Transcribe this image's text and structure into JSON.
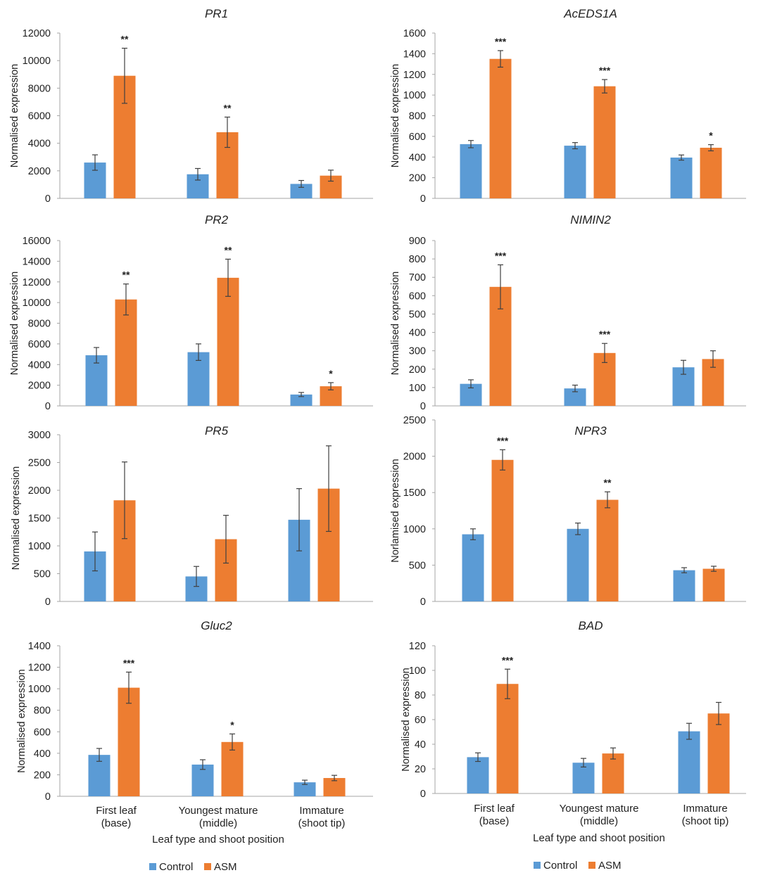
{
  "colors": {
    "control": "#5b9bd5",
    "asm": "#ed7d31",
    "axis": "#a6a6a6",
    "error": "#404040",
    "text": "#222222"
  },
  "xaxis": {
    "categories": [
      {
        "line1": "First leaf",
        "line2": "(base)"
      },
      {
        "line1": "Youngest mature",
        "line2": "(middle)"
      },
      {
        "line1": "Immature",
        "line2": "(shoot tip)"
      }
    ],
    "title": "Leaf type and shoot position"
  },
  "legend": {
    "control": "Control",
    "asm": "ASM"
  },
  "chart_data": [
    {
      "type": "bar",
      "title": "PR1",
      "ylabel": "Normalised expression",
      "ylim": [
        0,
        12000
      ],
      "yticks": [
        0,
        2000,
        4000,
        6000,
        8000,
        10000,
        12000
      ],
      "categories": [
        "First leaf (base)",
        "Youngest mature (middle)",
        "Immature (shoot tip)"
      ],
      "series": [
        {
          "name": "Control",
          "values": [
            2600,
            1750,
            1050
          ],
          "errors": [
            560,
            420,
            250
          ]
        },
        {
          "name": "ASM",
          "values": [
            8900,
            4800,
            1650
          ],
          "errors": [
            2000,
            1100,
            400
          ]
        }
      ],
      "significance": [
        "**",
        "**",
        ""
      ]
    },
    {
      "type": "bar",
      "title": "AcEDS1A",
      "ylabel": "Normalised expression",
      "ylim": [
        0,
        1600
      ],
      "yticks": [
        0,
        200,
        400,
        600,
        800,
        1000,
        1200,
        1400,
        1600
      ],
      "categories": [
        "First leaf (base)",
        "Youngest mature (middle)",
        "Immature (shoot tip)"
      ],
      "series": [
        {
          "name": "Control",
          "values": [
            525,
            510,
            395
          ],
          "errors": [
            35,
            30,
            25
          ]
        },
        {
          "name": "ASM",
          "values": [
            1350,
            1085,
            490
          ],
          "errors": [
            80,
            65,
            30
          ]
        }
      ],
      "significance": [
        "***",
        "***",
        "*"
      ]
    },
    {
      "type": "bar",
      "title": "PR2",
      "ylabel": "Normalised expression",
      "ylim": [
        0,
        16000
      ],
      "yticks": [
        0,
        2000,
        4000,
        6000,
        8000,
        10000,
        12000,
        14000,
        16000
      ],
      "categories": [
        "First leaf (base)",
        "Youngest mature (middle)",
        "Immature (shoot tip)"
      ],
      "series": [
        {
          "name": "Control",
          "values": [
            4900,
            5200,
            1100
          ],
          "errors": [
            750,
            800,
            200
          ]
        },
        {
          "name": "ASM",
          "values": [
            10300,
            12400,
            1900
          ],
          "errors": [
            1500,
            1800,
            350
          ]
        }
      ],
      "significance": [
        "**",
        "**",
        "*"
      ]
    },
    {
      "type": "bar",
      "title": "NIMIN2",
      "ylabel": "Normalised expression",
      "ylim": [
        0,
        900
      ],
      "yticks": [
        0,
        100,
        200,
        300,
        400,
        500,
        600,
        700,
        800,
        900
      ],
      "categories": [
        "First leaf (base)",
        "Youngest mature (middle)",
        "Immature (shoot tip)"
      ],
      "series": [
        {
          "name": "Control",
          "values": [
            120,
            95,
            210
          ],
          "errors": [
            22,
            18,
            38
          ]
        },
        {
          "name": "ASM",
          "values": [
            648,
            288,
            255
          ],
          "errors": [
            120,
            52,
            45
          ]
        }
      ],
      "significance": [
        "***",
        "***",
        ""
      ]
    },
    {
      "type": "bar",
      "title": "PR5",
      "ylabel": "Normalised expression",
      "ylim": [
        0,
        3000
      ],
      "yticks": [
        0,
        500,
        1000,
        1500,
        2000,
        2500,
        3000
      ],
      "categories": [
        "First leaf (base)",
        "Youngest mature (middle)",
        "Immature (shoot tip)"
      ],
      "series": [
        {
          "name": "Control",
          "values": [
            900,
            450,
            1470
          ],
          "errors": [
            350,
            180,
            560
          ]
        },
        {
          "name": "ASM",
          "values": [
            1820,
            1120,
            2030
          ],
          "errors": [
            690,
            430,
            770
          ]
        }
      ],
      "significance": [
        "",
        "",
        ""
      ]
    },
    {
      "type": "bar",
      "title": "NPR3",
      "ylabel": "Norlamised expression",
      "ylim": [
        0,
        2500
      ],
      "yticks": [
        0,
        500,
        1000,
        1500,
        2000,
        2500
      ],
      "categories": [
        "First leaf (base)",
        "Youngest mature (middle)",
        "Immature (shoot tip)"
      ],
      "series": [
        {
          "name": "Control",
          "values": [
            925,
            1000,
            430
          ],
          "errors": [
            75,
            80,
            35
          ]
        },
        {
          "name": "ASM",
          "values": [
            1950,
            1400,
            450
          ],
          "errors": [
            140,
            110,
            35
          ]
        }
      ],
      "significance": [
        "***",
        "**",
        ""
      ]
    },
    {
      "type": "bar",
      "title": "Gluc2",
      "ylabel": "Normalised expression",
      "ylim": [
        0,
        1400
      ],
      "yticks": [
        0,
        200,
        400,
        600,
        800,
        1000,
        1200,
        1400
      ],
      "categories": [
        "First leaf (base)",
        "Youngest mature (middle)",
        "Immature (shoot tip)"
      ],
      "series": [
        {
          "name": "Control",
          "values": [
            385,
            295,
            130
          ],
          "errors": [
            60,
            45,
            20
          ]
        },
        {
          "name": "ASM",
          "values": [
            1010,
            505,
            170
          ],
          "errors": [
            145,
            75,
            25
          ]
        }
      ],
      "significance": [
        "***",
        "*",
        ""
      ]
    },
    {
      "type": "bar",
      "title": "BAD",
      "ylabel": "Normalised expression",
      "ylim": [
        0,
        120
      ],
      "yticks": [
        0,
        20,
        40,
        60,
        80,
        100,
        120
      ],
      "categories": [
        "First leaf (base)",
        "Youngest mature (middle)",
        "Immature (shoot tip)"
      ],
      "series": [
        {
          "name": "Control",
          "values": [
            29.5,
            25,
            50.5
          ],
          "errors": [
            3.5,
            3.5,
            6.5
          ]
        },
        {
          "name": "ASM",
          "values": [
            89,
            32.5,
            65
          ],
          "errors": [
            12,
            4.5,
            9
          ]
        }
      ],
      "significance": [
        "***",
        "",
        ""
      ]
    }
  ]
}
